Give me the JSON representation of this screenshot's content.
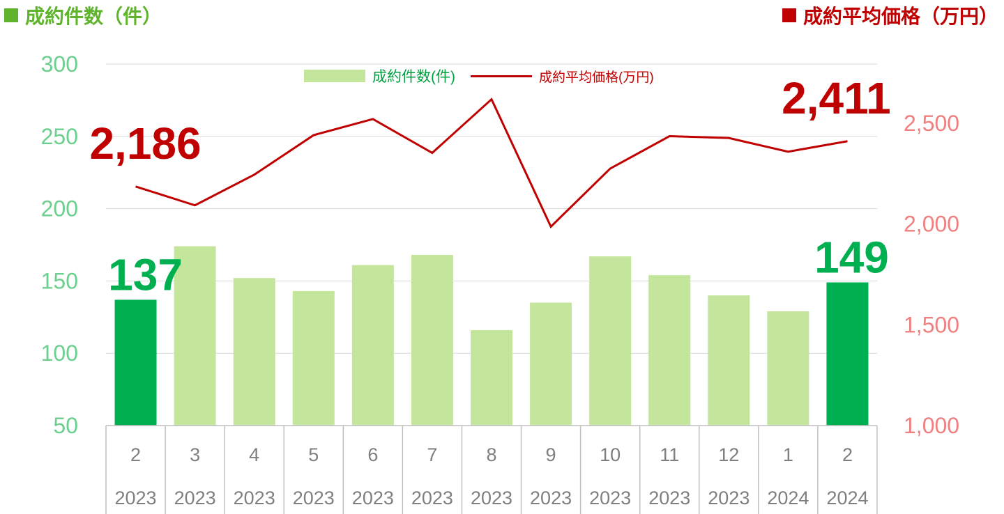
{
  "header": {
    "left_label": "成約件数（件）",
    "right_label": "成約平均価格（万円）",
    "left_color": "#5eb42a",
    "right_color": "#c00000"
  },
  "chart_data": {
    "type": "bar+line",
    "categories": [
      {
        "month": "2",
        "year": "2023"
      },
      {
        "month": "3",
        "year": "2023"
      },
      {
        "month": "4",
        "year": "2023"
      },
      {
        "month": "5",
        "year": "2023"
      },
      {
        "month": "6",
        "year": "2023"
      },
      {
        "month": "7",
        "year": "2023"
      },
      {
        "month": "8",
        "year": "2023"
      },
      {
        "month": "9",
        "year": "2023"
      },
      {
        "month": "10",
        "year": "2023"
      },
      {
        "month": "11",
        "year": "2023"
      },
      {
        "month": "12",
        "year": "2023"
      },
      {
        "month": "1",
        "year": "2024"
      },
      {
        "month": "2",
        "year": "2024"
      }
    ],
    "series": [
      {
        "name": "成約件数(件)",
        "type": "bar",
        "axis": "left",
        "values": [
          137,
          174,
          152,
          143,
          161,
          168,
          116,
          135,
          167,
          154,
          140,
          129,
          149
        ],
        "color": "#c3e59c",
        "highlight_color": "#00b050",
        "highlight_indices": [
          0,
          12
        ]
      },
      {
        "name": "成約平均価格(万円)",
        "type": "line",
        "axis": "right",
        "values": [
          2186,
          2093,
          2245,
          2441,
          2521,
          2353,
          2619,
          1987,
          2275,
          2436,
          2427,
          2359,
          2411
        ],
        "color": "#c00000"
      }
    ],
    "left_axis": {
      "ylim": [
        50,
        300
      ],
      "ticks": [
        50,
        100,
        150,
        200,
        250,
        300
      ],
      "color": "#6ccf8e"
    },
    "right_axis": {
      "ylim": [
        1000,
        2800
      ],
      "ticks": [
        "1,000",
        "1,500",
        "2,000",
        "2,500"
      ],
      "tick_values": [
        1000,
        1500,
        2000,
        2500
      ],
      "color": "#f08080"
    },
    "annotations": [
      {
        "text": "137",
        "series": 0,
        "index": 0,
        "color": "#00b050"
      },
      {
        "text": "149",
        "series": 0,
        "index": 12,
        "color": "#00b050"
      },
      {
        "text": "2,186",
        "series": 1,
        "index": 0,
        "color": "#c00000"
      },
      {
        "text": "2,411",
        "series": 1,
        "index": 12,
        "color": "#c00000"
      }
    ],
    "grid": true,
    "legend_position": "top-center"
  }
}
